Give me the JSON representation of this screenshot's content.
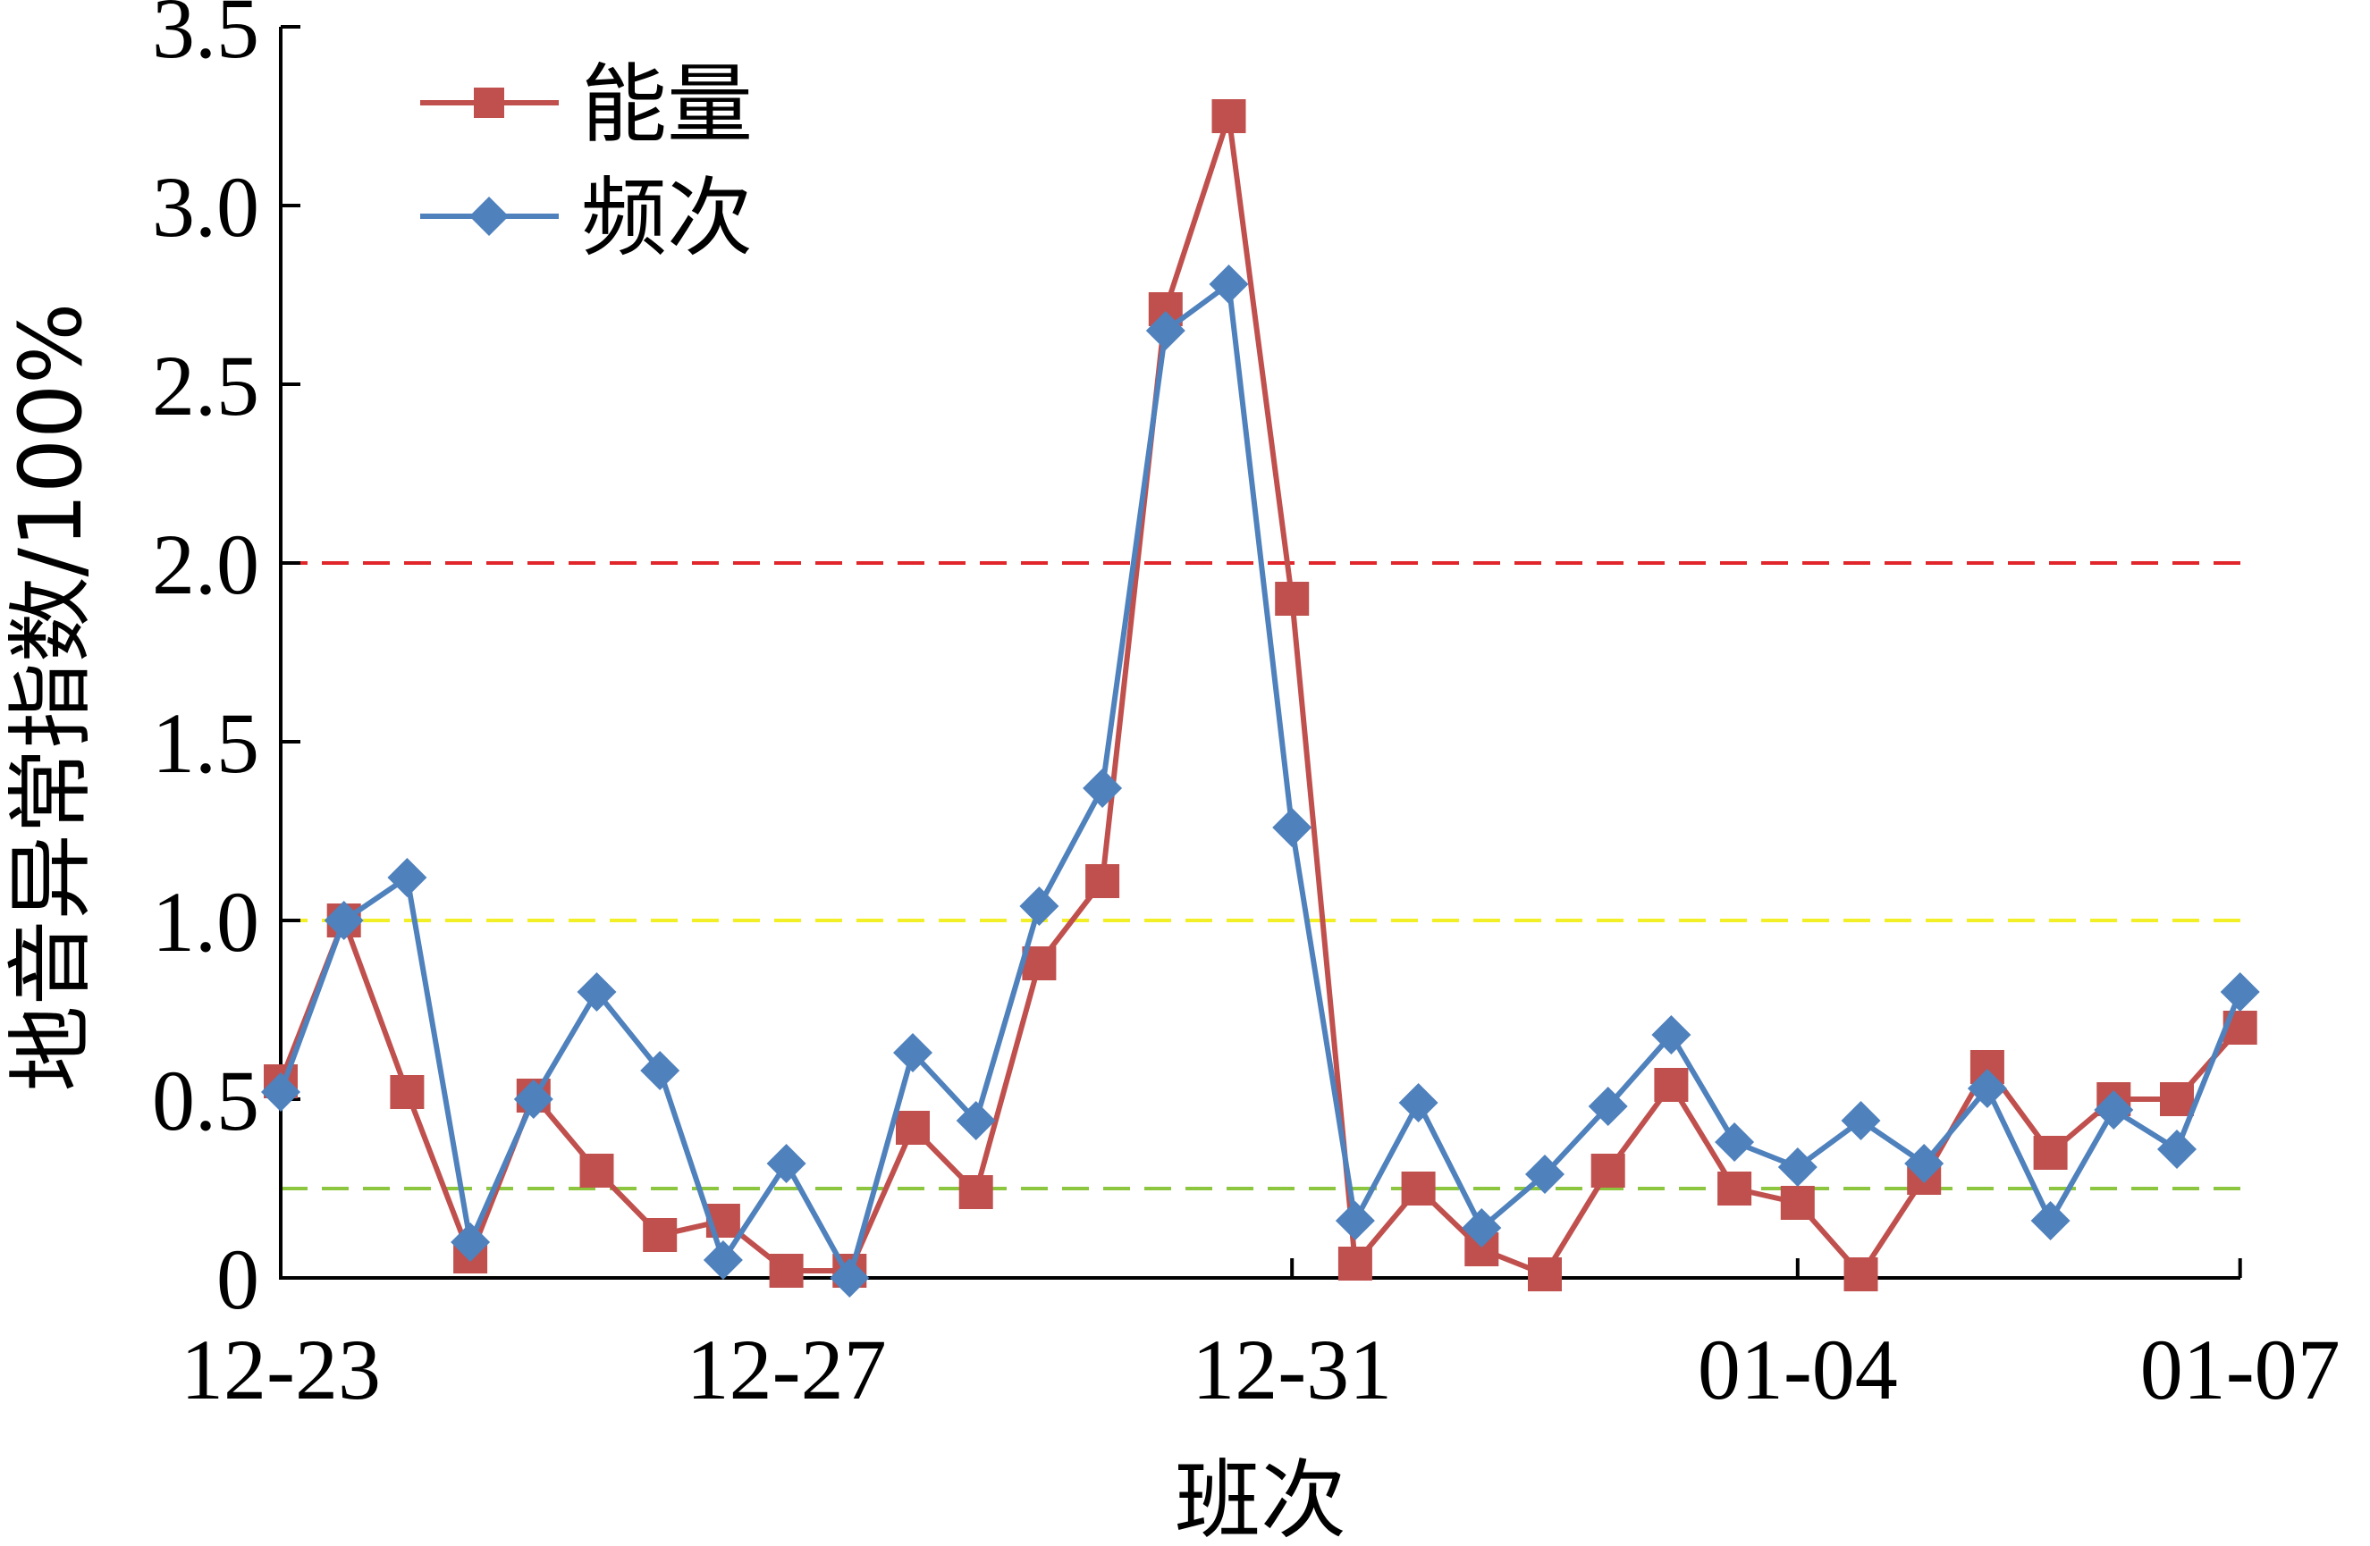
{
  "chart_data": {
    "type": "line",
    "xlabel": "班次",
    "ylabel": "地音异常指数/100%",
    "ylim": [
      0,
      3.5
    ],
    "grid": false,
    "legend_position": "top-left",
    "x_tick_labels": [
      "12-23",
      "12-27",
      "12-31",
      "01-04",
      "01-07"
    ],
    "y_tick_labels": [
      "0",
      "0.5",
      "1.0",
      "1.5",
      "2.0",
      "2.5",
      "3.0",
      "3.5"
    ],
    "y_ticks": [
      0,
      0.5,
      1.0,
      1.5,
      2.0,
      2.5,
      3.0,
      3.5
    ],
    "thresholds": [
      {
        "value": 2.0,
        "color": "#e0262a"
      },
      {
        "value": 1.0,
        "color": "#f2ef26"
      },
      {
        "value": 0.25,
        "color": "#8cc63f"
      }
    ],
    "series": [
      {
        "name": "能量",
        "color": "#c0504d",
        "marker": "square",
        "x": [
          0,
          1,
          2,
          3,
          4,
          5,
          6,
          7,
          8,
          9,
          10,
          11,
          12,
          13,
          14,
          15,
          16,
          17,
          18,
          19,
          20,
          21,
          22,
          23,
          24,
          25,
          26,
          27,
          28,
          29,
          30,
          31
        ],
        "values": [
          0.55,
          1.0,
          0.52,
          0.06,
          0.51,
          0.3,
          0.12,
          0.16,
          0.02,
          0.02,
          0.42,
          0.24,
          0.88,
          1.11,
          2.71,
          3.25,
          1.9,
          0.04,
          0.25,
          0.08,
          0.01,
          0.3,
          0.54,
          0.25,
          0.21,
          0.01,
          0.28,
          0.59,
          0.35,
          0.5,
          0.5,
          0.7
        ]
      },
      {
        "name": "频次",
        "color": "#4f81bd",
        "marker": "diamond",
        "x": [
          0,
          1,
          2,
          3,
          4,
          5,
          6,
          7,
          8,
          9,
          10,
          11,
          12,
          13,
          14,
          15,
          16,
          17,
          18,
          19,
          20,
          21,
          22,
          23,
          24,
          25,
          26,
          27,
          28,
          29,
          30,
          31
        ],
        "values": [
          0.52,
          1.0,
          1.12,
          0.1,
          0.5,
          0.8,
          0.58,
          0.05,
          0.32,
          0.0,
          0.63,
          0.44,
          1.04,
          1.37,
          2.65,
          2.78,
          1.26,
          0.16,
          0.49,
          0.14,
          0.29,
          0.48,
          0.68,
          0.38,
          0.31,
          0.44,
          0.32,
          0.53,
          0.16,
          0.47,
          0.36,
          0.8
        ]
      }
    ]
  }
}
